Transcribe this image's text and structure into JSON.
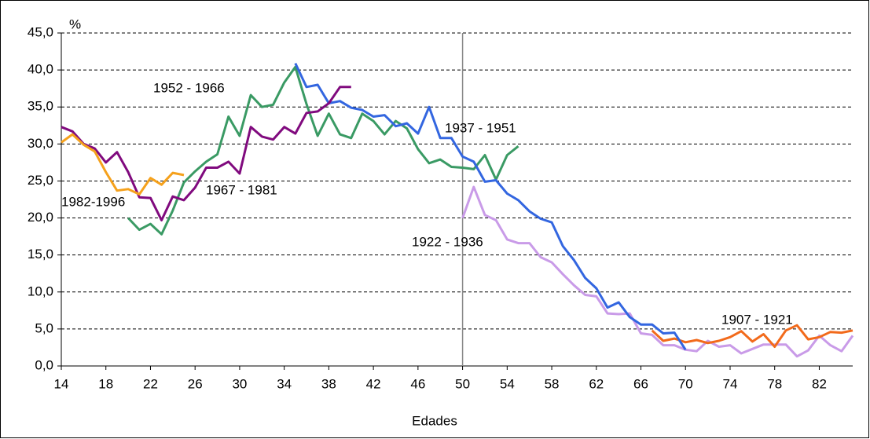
{
  "chart_data": {
    "type": "line",
    "x_label": "Edades",
    "y_label": "%",
    "x": [
      14,
      15,
      16,
      17,
      18,
      19,
      20,
      21,
      22,
      23,
      24,
      25,
      26,
      27,
      28,
      29,
      30,
      31,
      32,
      33,
      34,
      35,
      36,
      37,
      38,
      39,
      40,
      41,
      42,
      43,
      44,
      45,
      46,
      47,
      48,
      49,
      50,
      51,
      52,
      53,
      54,
      55,
      56,
      57,
      58,
      59,
      60,
      61,
      62,
      63,
      64,
      65,
      66,
      67,
      68,
      69,
      70,
      71,
      72,
      73,
      74,
      75,
      76,
      77,
      78,
      79,
      80,
      81,
      82,
      83,
      84,
      85
    ],
    "xlim": [
      14,
      85
    ],
    "xticks": [
      14,
      18,
      22,
      26,
      30,
      34,
      38,
      42,
      46,
      50,
      54,
      58,
      62,
      66,
      70,
      74,
      78,
      82
    ],
    "ylim": [
      0,
      45
    ],
    "yticks": [
      {
        "value": 0,
        "label": "0,0"
      },
      {
        "value": 5,
        "label": "5,0"
      },
      {
        "value": 10,
        "label": "10,0"
      },
      {
        "value": 15,
        "label": "15,0"
      },
      {
        "value": 20,
        "label": "20,0"
      },
      {
        "value": 25,
        "label": "25,0"
      },
      {
        "value": 30,
        "label": "30,0"
      },
      {
        "value": 35,
        "label": "35,0"
      },
      {
        "value": 40,
        "label": "40,0"
      },
      {
        "value": 45,
        "label": "45,0"
      }
    ],
    "grid": true,
    "vline": 50,
    "series": [
      {
        "name": "1922 - 1936",
        "color": "#c99be8",
        "values": [
          null,
          null,
          null,
          null,
          null,
          null,
          null,
          null,
          null,
          null,
          null,
          null,
          null,
          null,
          null,
          null,
          null,
          null,
          null,
          null,
          null,
          null,
          null,
          null,
          null,
          null,
          null,
          null,
          null,
          null,
          null,
          null,
          null,
          null,
          null,
          null,
          20.0,
          24.2,
          20.4,
          19.7,
          17.1,
          16.6,
          16.6,
          14.7,
          14.0,
          12.4,
          10.9,
          9.6,
          9.4,
          7.1,
          7.0,
          7.1,
          4.4,
          4.2,
          2.8,
          2.8,
          2.2,
          2.0,
          3.4,
          2.6,
          2.8,
          1.7,
          2.3,
          2.9,
          2.9,
          2.9,
          1.3,
          2.1,
          4.1,
          2.8,
          2.0,
          4.1
        ]
      },
      {
        "name": "1907 - 1921",
        "color": "#f26a1b",
        "values": [
          null,
          null,
          null,
          null,
          null,
          null,
          null,
          null,
          null,
          null,
          null,
          null,
          null,
          null,
          null,
          null,
          null,
          null,
          null,
          null,
          null,
          null,
          null,
          null,
          null,
          null,
          null,
          null,
          null,
          null,
          null,
          null,
          null,
          null,
          null,
          null,
          null,
          null,
          null,
          null,
          null,
          null,
          null,
          null,
          null,
          null,
          null,
          null,
          null,
          null,
          null,
          null,
          null,
          4.8,
          3.4,
          3.7,
          3.2,
          3.5,
          3.1,
          3.4,
          3.9,
          4.7,
          3.3,
          4.3,
          2.6,
          4.8,
          5.5,
          3.6,
          3.9,
          4.6,
          4.5,
          4.8
        ]
      },
      {
        "name": "1952 - 1966",
        "color": "#3a9a64",
        "values": [
          null,
          null,
          null,
          null,
          null,
          null,
          20.0,
          18.4,
          19.2,
          17.8,
          21.0,
          24.8,
          26.3,
          27.6,
          28.6,
          33.7,
          31.1,
          36.6,
          35.0,
          35.3,
          38.3,
          40.4,
          35.4,
          31.1,
          34.1,
          31.3,
          30.8,
          34.1,
          33.1,
          31.3,
          33.1,
          32.1,
          29.3,
          27.4,
          27.9,
          26.9,
          26.8,
          26.6,
          28.5,
          25.2,
          28.5,
          29.7,
          null,
          null,
          null,
          null,
          null,
          null,
          null,
          null,
          null,
          null,
          null,
          null,
          null,
          null,
          null,
          null,
          null,
          null,
          null,
          null,
          null,
          null,
          null,
          null,
          null,
          null,
          null,
          null,
          null,
          null
        ]
      },
      {
        "name": "1937 - 1951",
        "color": "#3366e0",
        "values": [
          null,
          null,
          null,
          null,
          null,
          null,
          null,
          null,
          null,
          null,
          null,
          null,
          null,
          null,
          null,
          null,
          null,
          null,
          null,
          null,
          null,
          40.9,
          37.7,
          38.0,
          35.5,
          35.8,
          34.9,
          34.6,
          33.7,
          33.9,
          32.4,
          32.8,
          31.4,
          35.0,
          30.8,
          30.8,
          28.3,
          27.6,
          24.9,
          25.1,
          23.3,
          22.4,
          20.9,
          19.9,
          19.4,
          16.2,
          14.3,
          11.9,
          10.5,
          7.9,
          8.6,
          6.6,
          5.6,
          5.6,
          4.4,
          4.5,
          2.2,
          null,
          null,
          null,
          null,
          null,
          null,
          null,
          null,
          null,
          null,
          null,
          null,
          null,
          null,
          null
        ]
      },
      {
        "name": "1967 - 1981",
        "color": "#800a7e",
        "values": [
          32.3,
          31.7,
          30.0,
          29.4,
          27.5,
          28.9,
          26.2,
          22.8,
          22.7,
          19.7,
          22.9,
          22.4,
          24.1,
          26.8,
          26.8,
          27.6,
          26.0,
          32.3,
          31.0,
          30.6,
          32.3,
          31.4,
          34.2,
          34.4,
          35.5,
          37.7,
          37.7,
          null,
          null,
          null,
          null,
          null,
          null,
          null,
          null,
          null,
          null,
          null,
          null,
          null,
          null,
          null,
          null,
          null,
          null,
          null,
          null,
          null,
          null,
          null,
          null,
          null,
          null,
          null,
          null,
          null,
          null,
          null,
          null,
          null,
          null,
          null,
          null,
          null,
          null,
          null,
          null,
          null,
          null,
          null,
          null,
          null
        ]
      },
      {
        "name": "1982-1996",
        "color": "#f5a11c",
        "values": [
          30.2,
          31.3,
          29.9,
          29.0,
          26.2,
          23.7,
          23.9,
          23.2,
          25.4,
          24.5,
          26.1,
          25.8,
          null,
          null,
          null,
          null,
          null,
          null,
          null,
          null,
          null,
          null,
          null,
          null,
          null,
          null,
          null,
          null,
          null,
          null,
          null,
          null,
          null,
          null,
          null,
          null,
          null,
          null,
          null,
          null,
          null,
          null,
          null,
          null,
          null,
          null,
          null,
          null,
          null,
          null,
          null,
          null,
          null,
          null,
          null,
          null,
          null,
          null,
          null,
          null,
          null,
          null,
          null,
          null,
          null,
          null,
          null,
          null,
          null,
          null,
          null,
          null
        ]
      }
    ]
  }
}
